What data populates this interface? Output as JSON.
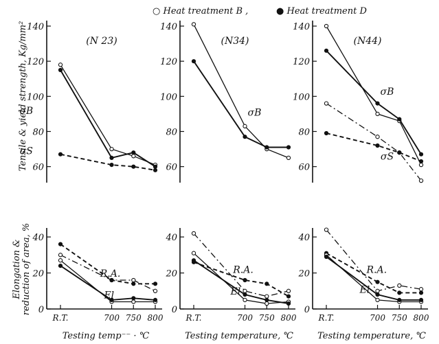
{
  "chart_data": {
    "type": "line",
    "legend": [
      {
        "marker": "open-circle",
        "label": "○ Heat treatment B ,"
      },
      {
        "marker": "filled-circle",
        "label": "● Heat treatment D"
      }
    ],
    "ylabel_upper": "Tensile & yield strength, Kg/mm²",
    "ylabel_lower_1": "Elongation &",
    "ylabel_lower_2": "reduction of area, %",
    "x_ticks": [
      "R.T.",
      "700",
      "750",
      "800"
    ],
    "upper_y_ticks": [
      "140",
      "120",
      "100",
      "80",
      "60"
    ],
    "lower_y_ticks": [
      "40",
      "20",
      "0"
    ],
    "upper_ylim": [
      54,
      140
    ],
    "lower_ylim": [
      0,
      45
    ],
    "panels": [
      {
        "title": "(N 23)",
        "xlabel": "Testing temp⁻⁻ ·  ℃",
        "annotations": [
          {
            "text": "σB",
            "x": 200,
            "y": 90
          },
          {
            "text": "σS",
            "x": 200,
            "y": 67
          },
          {
            "text": "R.A.",
            "x": 692,
            "y": 18
          },
          {
            "text": "El",
            "x": 685,
            "y": 6
          }
        ],
        "upper_series": [
          {
            "name": "σB",
            "treatment": "B",
            "x": [
              "R.T.",
              700,
              750,
              800
            ],
            "y": [
              118,
              70,
              66,
              61
            ]
          },
          {
            "name": "σB",
            "treatment": "D",
            "x": [
              "R.T.",
              700,
              750,
              800
            ],
            "y": [
              115,
              65,
              68,
              60
            ]
          },
          {
            "name": "σS",
            "treatment": "D",
            "x": [
              "R.T.",
              700,
              750,
              800
            ],
            "y": [
              67,
              61,
              60,
              58
            ]
          }
        ],
        "lower_series": [
          {
            "name": "R.A.",
            "treatment": "B",
            "x": [
              "R.T.",
              700,
              750,
              800
            ],
            "y": [
              30,
              16,
              16,
              10
            ]
          },
          {
            "name": "R.A.",
            "treatment": "D",
            "x": [
              "R.T.",
              700,
              750,
              800
            ],
            "y": [
              36,
              16,
              14,
              14
            ]
          },
          {
            "name": "El",
            "treatment": "B",
            "x": [
              "R.T.",
              700,
              750,
              800
            ],
            "y": [
              27,
              4,
              4,
              4
            ]
          },
          {
            "name": "El",
            "treatment": "D",
            "x": [
              "R.T.",
              700,
              750,
              800
            ],
            "y": [
              24,
              5,
              6,
              5
            ]
          }
        ]
      },
      {
        "title": "(N34)",
        "xlabel": "Testing temperature, ℃",
        "annotations": [
          {
            "text": "σB",
            "x": 722,
            "y": 89
          },
          {
            "text": "R.A.",
            "x": 690,
            "y": 20
          },
          {
            "text": "El",
            "x": 645,
            "y": 8
          }
        ],
        "upper_series": [
          {
            "name": "σB",
            "treatment": "B",
            "x": [
              "R.T.",
              700,
              750,
              800
            ],
            "y": [
              141,
              83,
              70,
              65
            ]
          },
          {
            "name": "σB",
            "treatment": "D",
            "x": [
              "R.T.",
              700,
              750,
              800
            ],
            "y": [
              120,
              77,
              71,
              71
            ]
          }
        ],
        "lower_series": [
          {
            "name": "R.A.",
            "treatment": "B",
            "x": [
              "R.T.",
              700,
              750,
              800
            ],
            "y": [
              42,
              10,
              7,
              10
            ]
          },
          {
            "name": "R.A.",
            "treatment": "D",
            "x": [
              "R.T.",
              700,
              750,
              800
            ],
            "y": [
              26,
              16,
              14,
              7
            ]
          },
          {
            "name": "El",
            "treatment": "B",
            "x": [
              "R.T.",
              700,
              750,
              800
            ],
            "y": [
              31,
              5,
              3,
              4
            ]
          },
          {
            "name": "El",
            "treatment": "D",
            "x": [
              "R.T.",
              700,
              750,
              800
            ],
            "y": [
              27,
              8,
              5,
              3
            ]
          }
        ]
      },
      {
        "title": "(N44)",
        "xlabel": "Testing temperature, ℃",
        "annotations": [
          {
            "text": "σB",
            "x": 722,
            "y": 101
          },
          {
            "text": "σS",
            "x": 722,
            "y": 64
          },
          {
            "text": "R.A.",
            "x": 695,
            "y": 20
          },
          {
            "text": "El",
            "x": 625,
            "y": 9
          }
        ],
        "upper_series": [
          {
            "name": "σB",
            "treatment": "B",
            "x": [
              "R.T.",
              700,
              750,
              800
            ],
            "y": [
              140,
              90,
              86,
              61
            ]
          },
          {
            "name": "σB",
            "treatment": "D",
            "x": [
              "R.T.",
              700,
              750,
              800
            ],
            "y": [
              126,
              96,
              87,
              67
            ]
          },
          {
            "name": "σS",
            "treatment": "B",
            "x": [
              "R.T.",
              700,
              750,
              800
            ],
            "y": [
              96,
              77,
              68,
              52
            ]
          },
          {
            "name": "σS",
            "treatment": "D",
            "x": [
              "R.T.",
              700,
              750,
              800
            ],
            "y": [
              79,
              72,
              68,
              63
            ]
          }
        ],
        "lower_series": [
          {
            "name": "R.A.",
            "treatment": "B",
            "x": [
              "R.T.",
              700,
              750,
              800
            ],
            "y": [
              44,
              10,
              13,
              11
            ]
          },
          {
            "name": "R.A.",
            "treatment": "D",
            "x": [
              "R.T.",
              700,
              750,
              800
            ],
            "y": [
              31,
              15,
              9,
              9
            ]
          },
          {
            "name": "El",
            "treatment": "B",
            "x": [
              "R.T.",
              700,
              750,
              800
            ],
            "y": [
              30,
              5,
              4,
              4
            ]
          },
          {
            "name": "El",
            "treatment": "D",
            "x": [
              "R.T.",
              700,
              750,
              800
            ],
            "y": [
              29,
              8,
              5,
              5
            ]
          }
        ]
      }
    ]
  }
}
